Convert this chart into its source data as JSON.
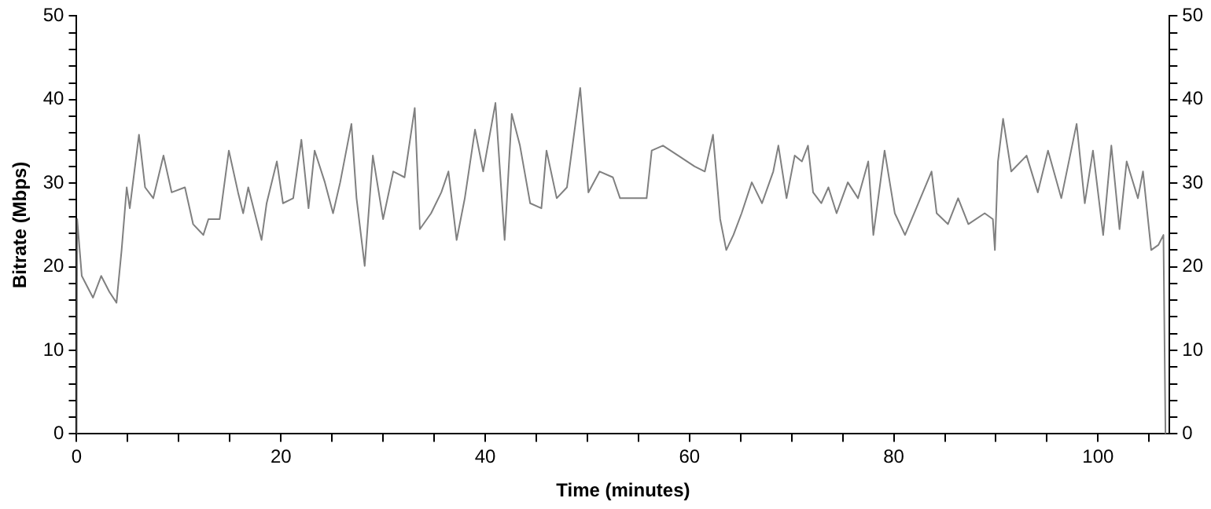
{
  "chart_data": {
    "type": "line",
    "xlabel": "Time (minutes)",
    "ylabel": "Bitrate (Mbps)",
    "x": [
      0,
      0.05,
      0.5,
      1.6,
      2.4,
      3.2,
      3.9,
      4.4,
      4.9,
      5.2,
      6.1,
      6.7,
      7.5,
      8.5,
      9.3,
      10.6,
      11.4,
      12.4,
      12.9,
      14,
      14.9,
      15.8,
      16.3,
      16.8,
      18.1,
      18.6,
      19.6,
      20.2,
      21.2,
      22,
      22.7,
      23.3,
      24.3,
      25.1,
      25.8,
      26.9,
      27.4,
      28.2,
      29,
      30,
      31,
      32.1,
      33.1,
      33.6,
      34.7,
      35.7,
      36.4,
      37.2,
      38,
      39,
      39.8,
      41,
      41.9,
      42.6,
      43.4,
      44.4,
      45.5,
      46,
      47,
      48,
      49.3,
      50.1,
      51.2,
      52.5,
      53.2,
      54.8,
      55.8,
      56.3,
      57.4,
      58.9,
      60.5,
      61.5,
      62.3,
      63,
      63.6,
      64.3,
      65.1,
      66.1,
      67.1,
      68.2,
      68.7,
      69.5,
      70.3,
      71,
      71.6,
      72.1,
      72.9,
      73.6,
      74.4,
      75.5,
      76.5,
      77.5,
      78,
      79.1,
      80.1,
      81.1,
      82.2,
      83.7,
      84.2,
      85.3,
      86.3,
      87.3,
      88.9,
      89.7,
      89.9,
      90.2,
      90.7,
      91.5,
      93,
      94.1,
      95.1,
      96.4,
      97.9,
      98.7,
      99.5,
      100.5,
      101.3,
      102.1,
      102.8,
      103.9,
      104.4,
      105.2,
      105.9,
      106.4,
      106.6
    ],
    "series": [
      {
        "color": "#808080",
        "values": [
          0,
          25.7,
          18.9,
          16.3,
          18.9,
          17,
          15.7,
          22,
          29.5,
          27,
          35.8,
          29.5,
          28.2,
          33.3,
          28.9,
          29.5,
          25.1,
          23.8,
          25.7,
          25.7,
          33.9,
          28.9,
          26.4,
          29.5,
          23.2,
          27.6,
          32.6,
          27.6,
          28.2,
          35.2,
          27,
          33.9,
          30.1,
          26.4,
          30.1,
          37.1,
          28.2,
          20.1,
          33.3,
          25.7,
          31.4,
          30.7,
          39,
          24.5,
          26.4,
          28.9,
          31.4,
          23.2,
          28.2,
          36.4,
          31.4,
          39.6,
          23.2,
          38.3,
          34.5,
          27.6,
          27,
          33.9,
          28.2,
          29.5,
          41.4,
          28.9,
          31.4,
          30.7,
          28.2,
          28.2,
          28.2,
          33.9,
          34.5,
          33.3,
          32,
          31.4,
          35.8,
          25.7,
          22,
          23.8,
          26.4,
          30.1,
          27.6,
          31.4,
          34.5,
          28.2,
          33.3,
          32.6,
          34.5,
          28.9,
          27.6,
          29.5,
          26.4,
          30.1,
          28.2,
          32.6,
          23.8,
          33.9,
          26.4,
          23.8,
          27,
          31.4,
          26.4,
          25.1,
          28.2,
          25.1,
          26.4,
          25.7,
          22,
          32.6,
          37.7,
          31.4,
          33.3,
          28.9,
          33.9,
          28.2,
          37.1,
          27.6,
          33.9,
          23.8,
          34.5,
          24.5,
          32.6,
          28.2,
          31.4,
          22,
          22.6,
          23.8,
          0
        ]
      }
    ],
    "xlim": [
      0,
      107
    ],
    "xticks": [
      0,
      {
        "value": 5,
        "label": null
      },
      {
        "value": 10,
        "label": null
      },
      {
        "value": 15,
        "label": null
      },
      20,
      {
        "value": 25,
        "label": null
      },
      {
        "value": 30,
        "label": null
      },
      {
        "value": 35,
        "label": null
      },
      40,
      {
        "value": 45,
        "label": null
      },
      {
        "value": 50,
        "label": null
      },
      {
        "value": 55,
        "label": null
      },
      60,
      {
        "value": 65,
        "label": null
      },
      {
        "value": 70,
        "label": null
      },
      {
        "value": 75,
        "label": null
      },
      80,
      {
        "value": 85,
        "label": null
      },
      {
        "value": 90,
        "label": null
      },
      {
        "value": 95,
        "label": null
      },
      100,
      {
        "value": 105,
        "label": null
      }
    ],
    "ylim": [
      0,
      50
    ],
    "yticks": [
      0,
      {
        "value": 2,
        "label": null
      },
      {
        "value": 4,
        "label": null
      },
      {
        "value": 6,
        "label": null
      },
      {
        "value": 8,
        "label": null
      },
      10,
      {
        "value": 12,
        "label": null
      },
      {
        "value": 14,
        "label": null
      },
      {
        "value": 16,
        "label": null
      },
      {
        "value": 18,
        "label": null
      },
      20,
      {
        "value": 22,
        "label": null
      },
      {
        "value": 24,
        "label": null
      },
      {
        "value": 26,
        "label": null
      },
      {
        "value": 28,
        "label": null
      },
      30,
      {
        "value": 32,
        "label": null
      },
      {
        "value": 34,
        "label": null
      },
      {
        "value": 36,
        "label": null
      },
      {
        "value": 38,
        "label": null
      },
      40,
      {
        "value": 42,
        "label": null
      },
      {
        "value": 44,
        "label": null
      },
      {
        "value": 46,
        "label": null
      },
      {
        "value": 48,
        "label": null
      },
      50
    ],
    "y2lim": [
      0,
      50
    ],
    "y2ticks": [
      0,
      {
        "value": 2,
        "label": null
      },
      {
        "value": 4,
        "label": null
      },
      {
        "value": 6,
        "label": null
      },
      {
        "value": 8,
        "label": null
      },
      10,
      {
        "value": 12,
        "label": null
      },
      {
        "value": 14,
        "label": null
      },
      {
        "value": 16,
        "label": null
      },
      {
        "value": 18,
        "label": null
      },
      20,
      {
        "value": 22,
        "label": null
      },
      {
        "value": 24,
        "label": null
      },
      {
        "value": 26,
        "label": null
      },
      {
        "value": 28,
        "label": null
      },
      30,
      {
        "value": 32,
        "label": null
      },
      {
        "value": 34,
        "label": null
      },
      {
        "value": 36,
        "label": null
      },
      {
        "value": 38,
        "label": null
      },
      40,
      {
        "value": 42,
        "label": null
      },
      {
        "value": 44,
        "label": null
      },
      {
        "value": 46,
        "label": null
      },
      {
        "value": 48,
        "label": null
      },
      50
    ],
    "grid": false,
    "legend": false,
    "marker": "none",
    "line_style": "solid"
  }
}
